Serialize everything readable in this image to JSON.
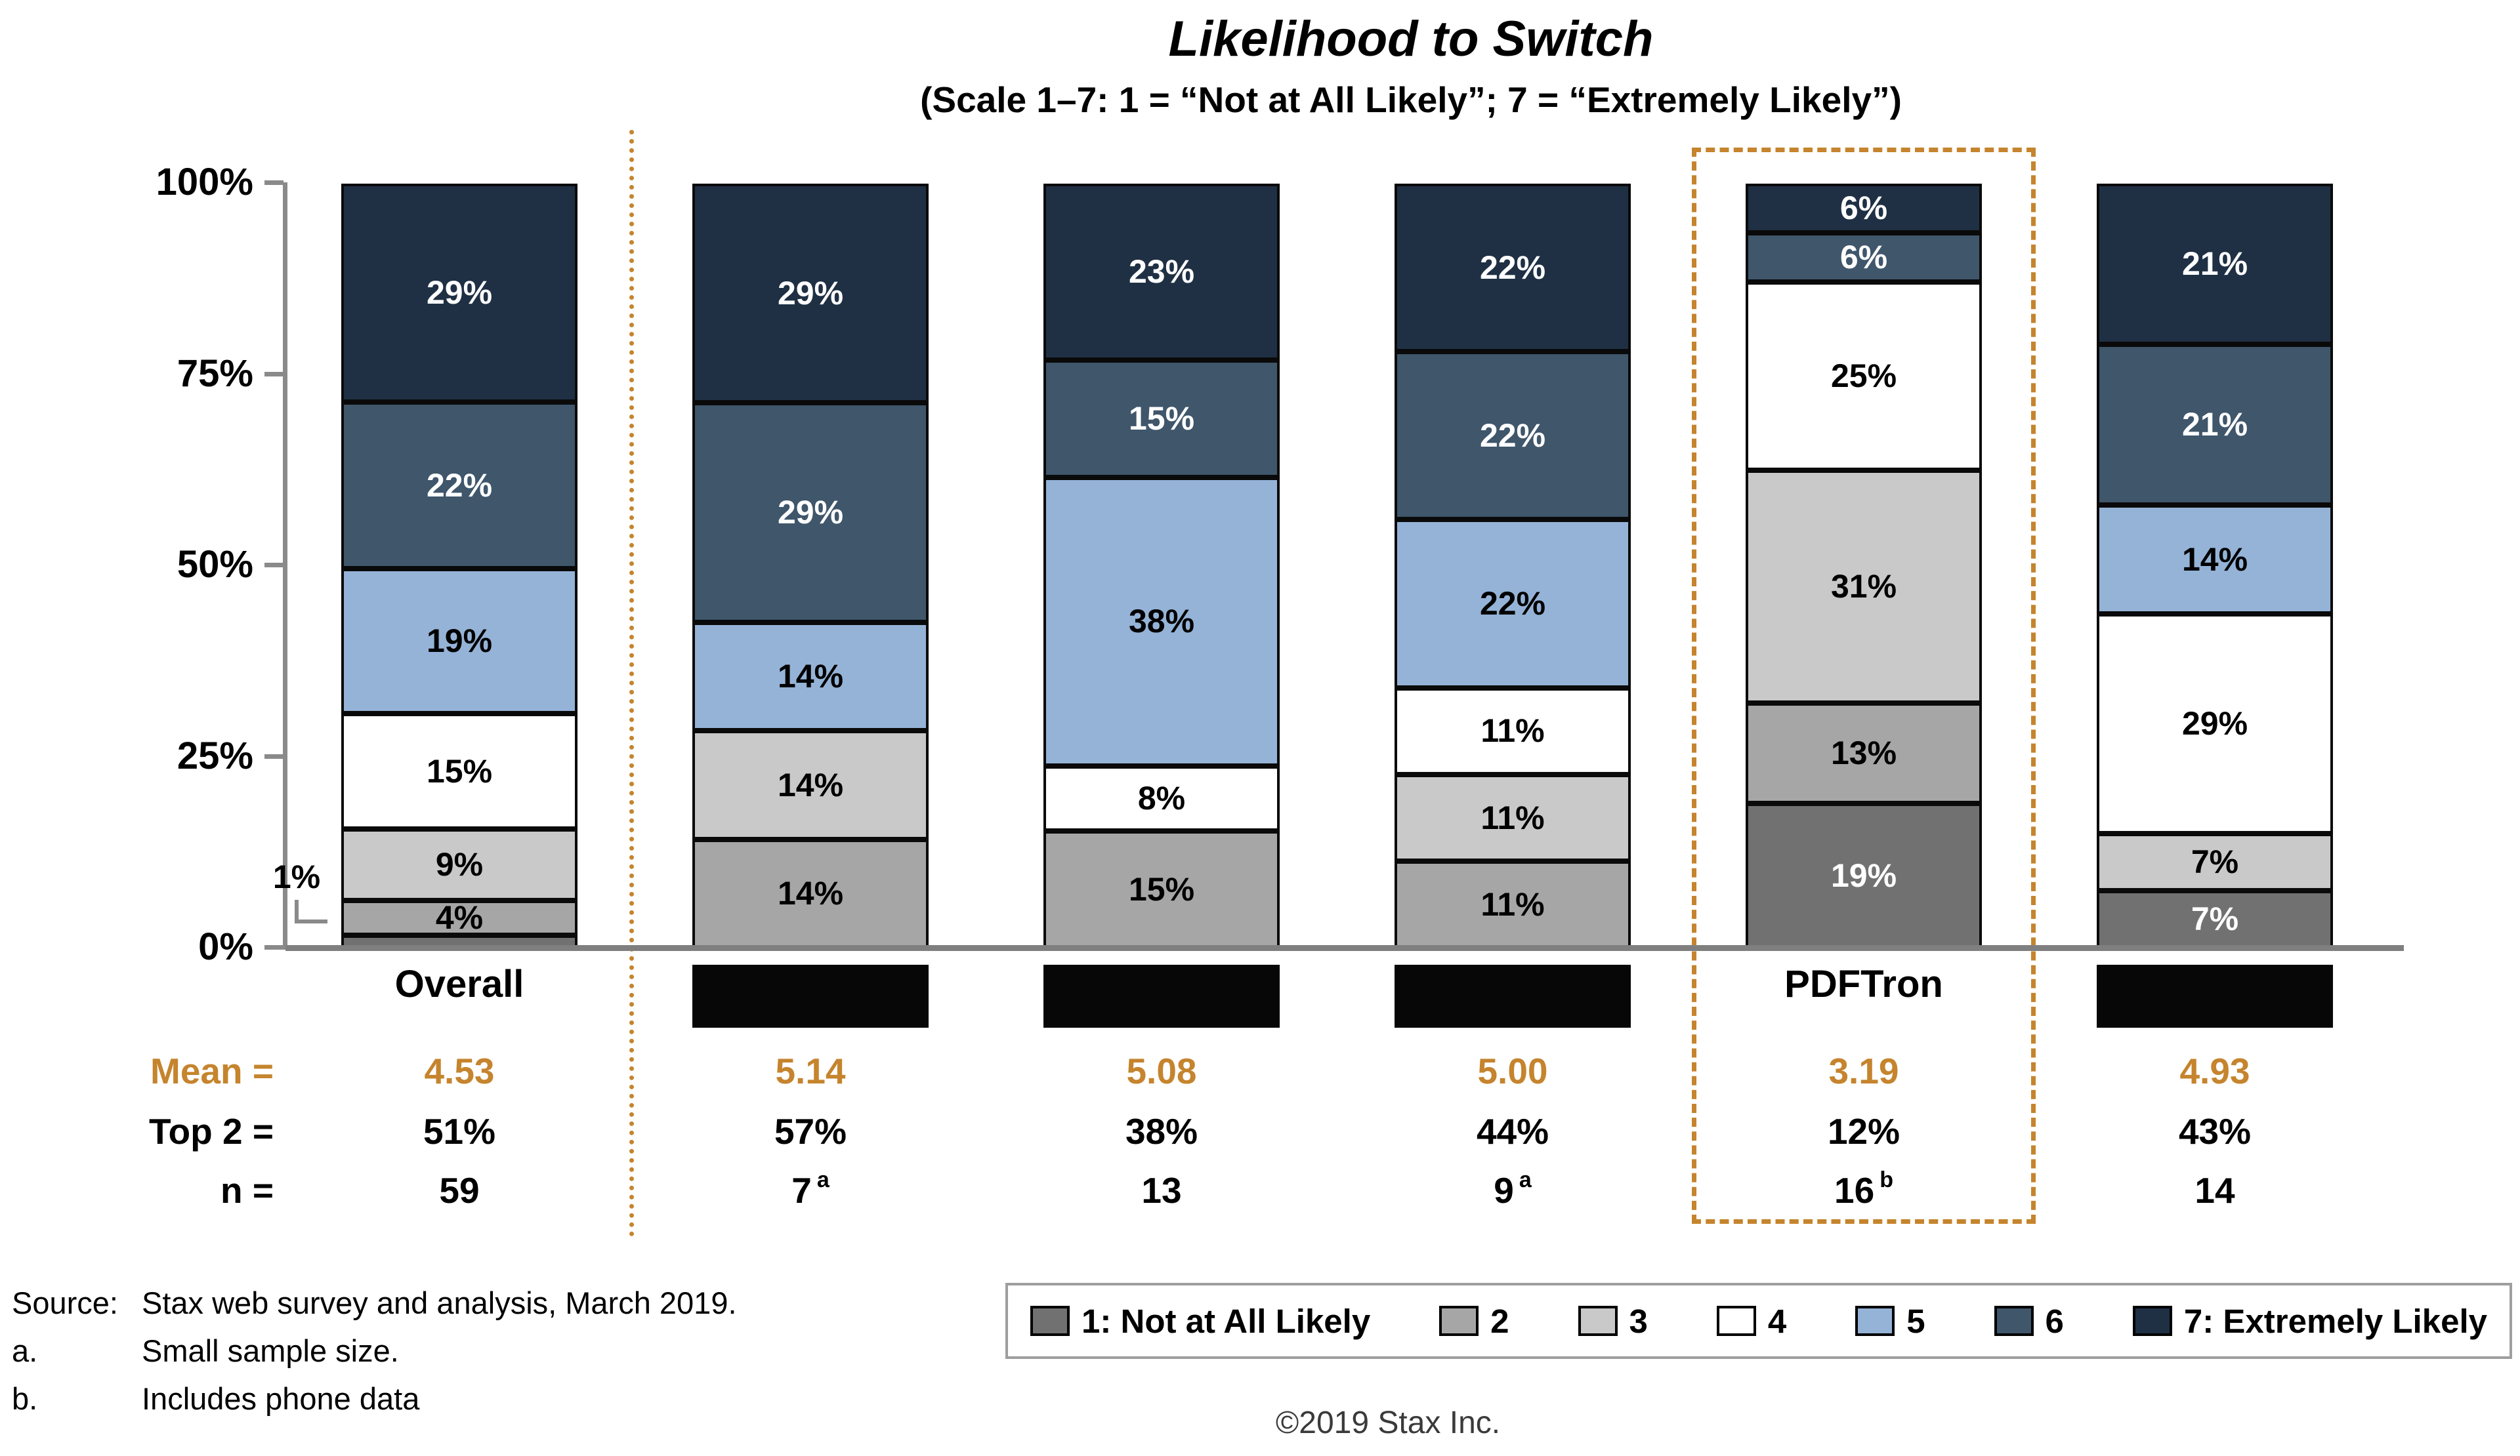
{
  "title": "Likelihood to Switch",
  "subtitle": "(Scale 1–7: 1 = “Not at All Likely”; 7 = “Extremely Likely”)",
  "colors": {
    "r1": "#717171",
    "r2": "#A6A6A6",
    "r3": "#C9C9C9",
    "r4": "#FFFFFF",
    "r5": "#95B3D7",
    "r6": "#3F566B",
    "r7": "#1F3044",
    "accent_orange": "#C5842D",
    "axis_gray": "#8A8A8A",
    "redaction_black": "#070707"
  },
  "stats_labels": {
    "mean": "Mean =",
    "top2": "Top 2 =",
    "n": "n ="
  },
  "chart_data": {
    "type": "bar",
    "stacked": true,
    "unit": "percent",
    "title": "Likelihood to Switch",
    "ylim": [
      0,
      100
    ],
    "y_ticks": [
      "100%",
      "75%",
      "50%",
      "25%",
      "0%"
    ],
    "grid": false,
    "legend_position": "bottom-right",
    "categories": [
      {
        "label": "Overall",
        "redacted": false
      },
      {
        "label": "",
        "redacted": true
      },
      {
        "label": "",
        "redacted": true
      },
      {
        "label": "",
        "redacted": true
      },
      {
        "label": "PDFTron",
        "redacted": false
      },
      {
        "label": "",
        "redacted": true
      }
    ],
    "series": [
      {
        "name": "1: Not at All Likely",
        "color_key": "r1",
        "label_light": true,
        "values": [
          1,
          0,
          0,
          0,
          19,
          7
        ]
      },
      {
        "name": "2",
        "color_key": "r2",
        "label_light": false,
        "values": [
          4,
          14,
          15,
          11,
          13,
          0
        ]
      },
      {
        "name": "3",
        "color_key": "r3",
        "label_light": false,
        "values": [
          9,
          14,
          0,
          11,
          31,
          7
        ]
      },
      {
        "name": "4",
        "color_key": "r4",
        "label_light": false,
        "values": [
          15,
          0,
          8,
          11,
          25,
          29
        ]
      },
      {
        "name": "5",
        "color_key": "r5",
        "label_light": false,
        "values": [
          19,
          14,
          38,
          22,
          0,
          14
        ]
      },
      {
        "name": "6",
        "color_key": "r6",
        "label_light": true,
        "values": [
          22,
          29,
          15,
          22,
          6,
          21
        ]
      },
      {
        "name": "7: Extremely Likely",
        "color_key": "r7",
        "label_light": true,
        "values": [
          29,
          29,
          23,
          22,
          6,
          21
        ]
      }
    ],
    "callout": {
      "category_index": 0,
      "series_index": 0,
      "text": "1%"
    },
    "stats": {
      "mean": [
        "4.53",
        "5.14",
        "5.08",
        "5.00",
        "3.19",
        "4.93"
      ],
      "top2": [
        "51%",
        "57%",
        "38%",
        "44%",
        "12%",
        "43%"
      ],
      "n": [
        "59",
        "7",
        "13",
        "9",
        "16",
        "14"
      ],
      "n_footnotes": [
        "",
        "a",
        "",
        "a",
        "b",
        ""
      ]
    },
    "highlight_category_index": 4,
    "separator_after_category_index": 0
  },
  "legend": {
    "items": [
      {
        "label": "1: Not at All Likely",
        "color_key": "r1"
      },
      {
        "label": "2",
        "color_key": "r2"
      },
      {
        "label": "3",
        "color_key": "r3"
      },
      {
        "label": "4",
        "color_key": "r4"
      },
      {
        "label": "5",
        "color_key": "r5"
      },
      {
        "label": "6",
        "color_key": "r6"
      },
      {
        "label": "7: Extremely Likely",
        "color_key": "r7"
      }
    ]
  },
  "footnotes": [
    {
      "marker": "Source:",
      "text": "Stax web survey and analysis, March 2019."
    },
    {
      "marker": "a.",
      "text": "Small sample size."
    },
    {
      "marker": "b.",
      "text": "Includes phone data"
    }
  ],
  "footer": "©2019 Stax Inc."
}
